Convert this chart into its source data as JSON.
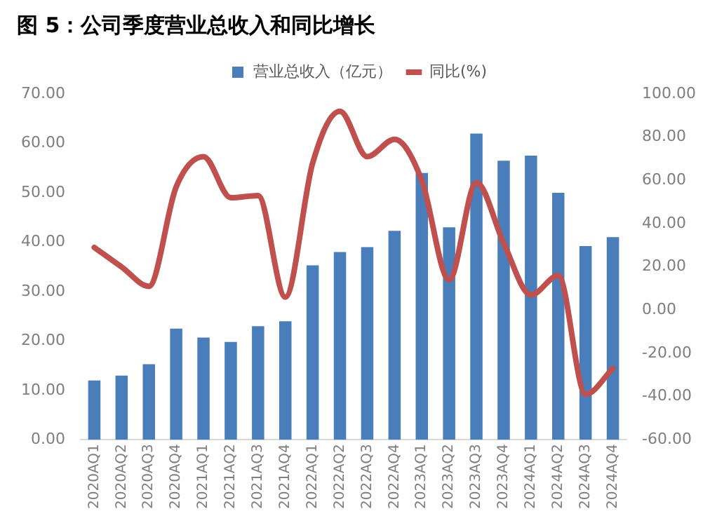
{
  "chart_data": {
    "type": "bar",
    "title": "图 5：公司季度营业总收入和同比增长",
    "categories": [
      "2020AQ1",
      "2020AQ2",
      "2020AQ3",
      "2020AQ4",
      "2021AQ1",
      "2021AQ2",
      "2021AQ3",
      "2021AQ4",
      "2022AQ1",
      "2022AQ2",
      "2022AQ3",
      "2022AQ4",
      "2023AQ1",
      "2023AQ2",
      "2023AQ3",
      "2023AQ4",
      "2024AQ1",
      "2024AQ2",
      "2024AQ3",
      "2024AQ4"
    ],
    "series": [
      {
        "name": "营业总收入（亿元）",
        "color": "#4a7ebb",
        "values": [
          12,
          13,
          15.3,
          22.5,
          20.7,
          19.8,
          23,
          24,
          35.3,
          38,
          39,
          42.3,
          54,
          43,
          62,
          56.5,
          57.5,
          50,
          39.2,
          41
        ]
      },
      {
        "name": "同比(%)",
        "type": "line",
        "axis": "y2",
        "color": "#c0504d",
        "values": [
          29,
          20,
          11,
          57,
          71,
          52,
          53,
          6,
          68,
          92,
          71,
          79,
          60,
          14,
          59,
          31,
          7,
          16,
          -39,
          -27
        ]
      }
    ],
    "ylim": [
      0,
      70
    ],
    "yticks": [
      {
        "value": 0,
        "label": "0.00"
      },
      {
        "value": 10,
        "label": "10.00"
      },
      {
        "value": 20,
        "label": "20.00"
      },
      {
        "value": 30,
        "label": "30.00"
      },
      {
        "value": 40,
        "label": "40.00"
      },
      {
        "value": 50,
        "label": "50.00"
      },
      {
        "value": 60,
        "label": "60.00"
      },
      {
        "value": 70,
        "label": "70.00"
      }
    ],
    "y2lim": [
      -60,
      100
    ],
    "y2ticks": [
      {
        "value": -60,
        "label": "-60.00"
      },
      {
        "value": -40,
        "label": "-40.00"
      },
      {
        "value": -20,
        "label": "-20.00"
      },
      {
        "value": 0,
        "label": "0.00"
      },
      {
        "value": 20,
        "label": "20.00"
      },
      {
        "value": 40,
        "label": "40.00"
      },
      {
        "value": 60,
        "label": "60.00"
      },
      {
        "value": 80,
        "label": "80.00"
      },
      {
        "value": 100,
        "label": "100.00"
      }
    ],
    "legend": "top",
    "grid": false,
    "marker": "none"
  }
}
